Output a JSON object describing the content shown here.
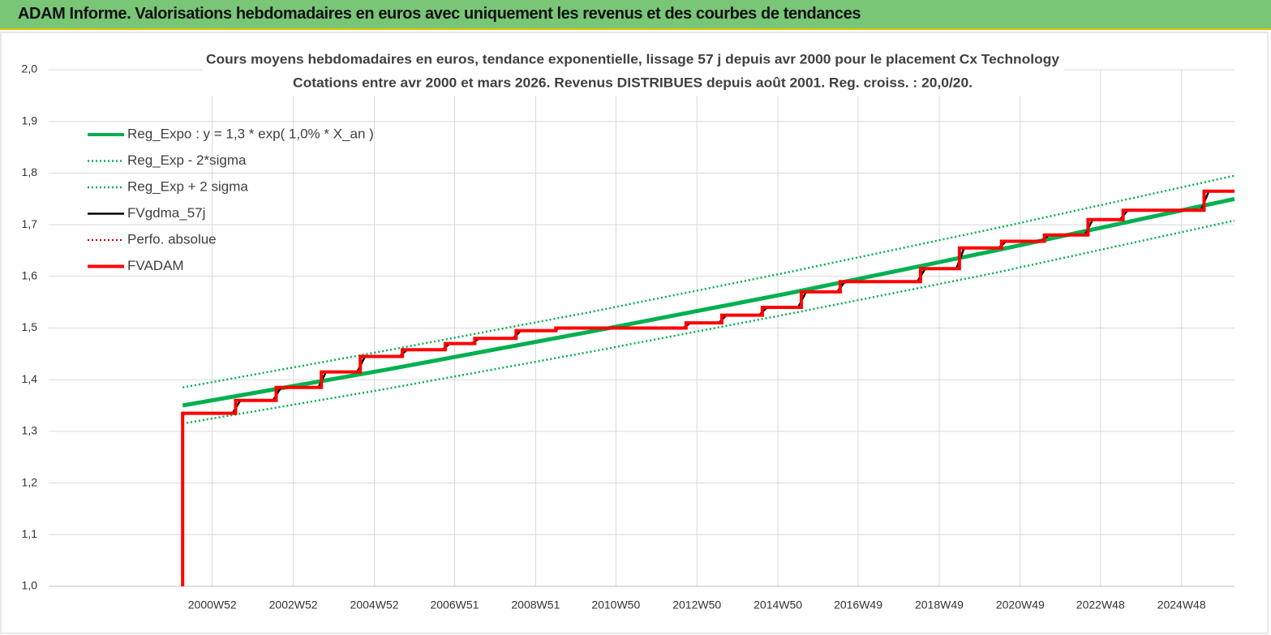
{
  "header": {
    "title": "ADAM Informe. Valorisations hebdomadaires en euros avec uniquement les revenus et des courbes de tendances"
  },
  "chart_data": {
    "type": "line",
    "title": "Cours moyens hebdomadaires en euros, tendance exponentielle, lissage 57 j depuis avr 2000 pour le placement Cx Technology",
    "subtitle": "Cotations entre avr 2000 et mars 2026. Revenus DISTRIBUES depuis août 2001. Reg. croiss. : 20,0/20.",
    "xlim": [
      "1996W50",
      "2026W12"
    ],
    "xticks": [
      "2000W52",
      "2002W52",
      "2004W52",
      "2006W51",
      "2008W51",
      "2010W50",
      "2012W50",
      "2014W50",
      "2016W49",
      "2018W49",
      "2020W49",
      "2022W48",
      "2024W48"
    ],
    "ylim": [
      1.0,
      2.0
    ],
    "yticks": [
      {
        "value": 1.0,
        "label": "1,0"
      },
      {
        "value": 1.1,
        "label": "1,1"
      },
      {
        "value": 1.2,
        "label": "1,2"
      },
      {
        "value": 1.3,
        "label": "1,3"
      },
      {
        "value": 1.4,
        "label": "1,4"
      },
      {
        "value": 1.5,
        "label": "1,5"
      },
      {
        "value": 1.6,
        "label": "1,6"
      },
      {
        "value": 1.7,
        "label": "1,7"
      },
      {
        "value": 1.8,
        "label": "1,8"
      },
      {
        "value": 1.9,
        "label": "1,9"
      },
      {
        "value": 2.0,
        "label": "2,0"
      }
    ],
    "grid": true,
    "legend": "upper-left",
    "series": [
      {
        "name": "Reg_Expo : y = 1,3 * exp( 1,0% *  X_an )",
        "color": "#00b050",
        "width": 5,
        "dash": "solid",
        "x": [
          "2000W14",
          "2005W14",
          "2010W14",
          "2015W14",
          "2020W14",
          "2026W12"
        ],
        "values": [
          1.35,
          1.419,
          1.492,
          1.568,
          1.649,
          1.75
        ]
      },
      {
        "name": "Reg_Exp - 2*sigma",
        "color": "#00b050",
        "width": 2.5,
        "dash": "dotted",
        "x": [
          "2000W14",
          "2005W14",
          "2010W14",
          "2015W14",
          "2020W14",
          "2026W12"
        ],
        "values": [
          1.315,
          1.382,
          1.453,
          1.528,
          1.606,
          1.708
        ]
      },
      {
        "name": "Reg_Exp + 2 sigma",
        "color": "#00b050",
        "width": 2.5,
        "dash": "dotted",
        "x": [
          "2000W14",
          "2005W14",
          "2010W14",
          "2015W14",
          "2020W14",
          "2026W12"
        ],
        "values": [
          1.385,
          1.456,
          1.53,
          1.609,
          1.692,
          1.795
        ]
      },
      {
        "name": "FVgdma_57j",
        "color": "#000000",
        "width": 2.5,
        "dash": "solid",
        "x": [
          "2000W14",
          "2000W14",
          "2001W26",
          "2001W36",
          "2002W26",
          "2002W36",
          "2003W32",
          "2003W42",
          "2004W30",
          "2004W40",
          "2005W32",
          "2005W42",
          "2006W35",
          "2006W45",
          "2007W21",
          "2007W31",
          "2008W22",
          "2008W32",
          "2009W21",
          "2009W31",
          "2012W32",
          "2012W42",
          "2013W26",
          "2013W36",
          "2014W26",
          "2014W36",
          "2015W24",
          "2015W34",
          "2016W22",
          "2016W32",
          "2018W21",
          "2018W31",
          "2019W19",
          "2019W29",
          "2020W21",
          "2020W31",
          "2021W24",
          "2021W34",
          "2022W28",
          "2022W38",
          "2023W21",
          "2023W31",
          "2025W21",
          "2025W31",
          "2026W12"
        ],
        "values": [
          1.0,
          1.335,
          1.335,
          1.36,
          1.36,
          1.385,
          1.385,
          1.415,
          1.415,
          1.445,
          1.445,
          1.458,
          1.458,
          1.47,
          1.47,
          1.48,
          1.48,
          1.495,
          1.495,
          1.5,
          1.5,
          1.51,
          1.51,
          1.525,
          1.525,
          1.54,
          1.54,
          1.57,
          1.57,
          1.59,
          1.59,
          1.615,
          1.615,
          1.655,
          1.655,
          1.668,
          1.668,
          1.68,
          1.68,
          1.71,
          1.71,
          1.728,
          1.728,
          1.765,
          1.765
        ]
      },
      {
        "name": "Perfo. absolue",
        "color": "#c00000",
        "width": 2,
        "dash": "dotted",
        "x": [
          "2000W14",
          "2000W14",
          "2001W30",
          "2001W30",
          "2002W30",
          "2002W30",
          "2003W36",
          "2003W36",
          "2004W34",
          "2004W34",
          "2005W36",
          "2005W36",
          "2006W39",
          "2006W39",
          "2007W25",
          "2007W25",
          "2008W26",
          "2008W26",
          "2009W25",
          "2009W25",
          "2012W36",
          "2012W36",
          "2013W30",
          "2013W30",
          "2014W30",
          "2014W30",
          "2015W28",
          "2015W28",
          "2016W26",
          "2016W26",
          "2018W25",
          "2018W25",
          "2019W23",
          "2019W23",
          "2020W25",
          "2020W25",
          "2021W28",
          "2021W28",
          "2022W32",
          "2022W32",
          "2023W25",
          "2023W25",
          "2025W25",
          "2025W25",
          "2026W12"
        ],
        "values": [
          1.0,
          1.335,
          1.335,
          1.36,
          1.36,
          1.385,
          1.385,
          1.415,
          1.415,
          1.445,
          1.445,
          1.458,
          1.458,
          1.47,
          1.47,
          1.48,
          1.48,
          1.495,
          1.495,
          1.5,
          1.5,
          1.51,
          1.51,
          1.525,
          1.525,
          1.54,
          1.54,
          1.57,
          1.57,
          1.59,
          1.59,
          1.615,
          1.615,
          1.655,
          1.655,
          1.668,
          1.668,
          1.68,
          1.68,
          1.71,
          1.71,
          1.728,
          1.728,
          1.765,
          1.765
        ]
      },
      {
        "name": "FVADAM",
        "color": "#ff0000",
        "width": 4,
        "dash": "solid",
        "x": [
          "2000W14",
          "2000W14",
          "2001W30",
          "2001W30",
          "2002W30",
          "2002W30",
          "2003W36",
          "2003W36",
          "2004W34",
          "2004W34",
          "2005W36",
          "2005W36",
          "2006W39",
          "2006W39",
          "2007W25",
          "2007W25",
          "2008W26",
          "2008W26",
          "2009W25",
          "2009W25",
          "2012W36",
          "2012W36",
          "2013W30",
          "2013W30",
          "2014W30",
          "2014W30",
          "2015W28",
          "2015W28",
          "2016W26",
          "2016W26",
          "2018W25",
          "2018W25",
          "2019W23",
          "2019W23",
          "2020W25",
          "2020W25",
          "2021W28",
          "2021W28",
          "2022W32",
          "2022W32",
          "2023W25",
          "2023W25",
          "2025W25",
          "2025W25",
          "2026W12"
        ],
        "values": [
          1.0,
          1.335,
          1.335,
          1.36,
          1.36,
          1.385,
          1.385,
          1.415,
          1.415,
          1.445,
          1.445,
          1.458,
          1.458,
          1.47,
          1.47,
          1.48,
          1.48,
          1.495,
          1.495,
          1.5,
          1.5,
          1.51,
          1.51,
          1.525,
          1.525,
          1.54,
          1.54,
          1.57,
          1.57,
          1.59,
          1.59,
          1.615,
          1.615,
          1.655,
          1.655,
          1.668,
          1.668,
          1.68,
          1.68,
          1.71,
          1.71,
          1.728,
          1.728,
          1.765,
          1.765
        ]
      }
    ]
  }
}
